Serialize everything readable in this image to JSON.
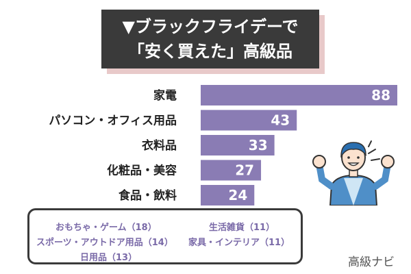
{
  "title": {
    "line1": "▼ブラックフライデーで",
    "line2": "「安く買えた」高級品"
  },
  "chart_data": {
    "type": "bar",
    "orientation": "horizontal",
    "categories": [
      "家電",
      "パソコン・オフィス用品",
      "衣料品",
      "化粧品・美容",
      "食品・飲料"
    ],
    "values": [
      88,
      43,
      33,
      27,
      24
    ],
    "bar_color": "#8a7cb4",
    "value_label_color": "#ffffff",
    "grid": false
  },
  "others": [
    "おもちゃ・ゲーム（18）",
    "生活雑貨（11）",
    "スポーツ・アウトドア用品（14）",
    "家具・インテリア（11）",
    "日用品（13）"
  ],
  "brand": "高級ナビ",
  "illustration": "cheering-man-icon"
}
